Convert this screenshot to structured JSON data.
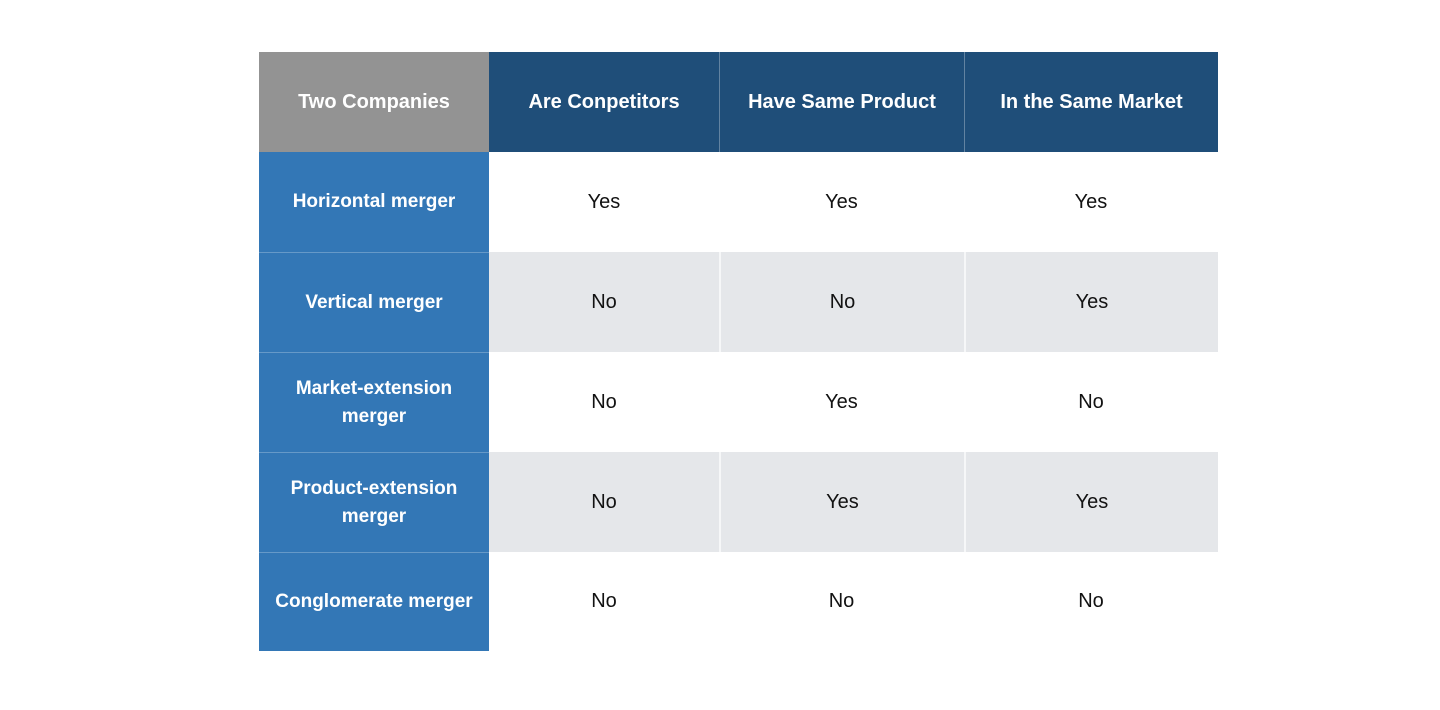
{
  "chart_data": {
    "type": "table",
    "corner_header": "Two Companies",
    "columns": [
      "Are Conpetitors",
      "Have Same Product",
      "In the Same Market"
    ],
    "rows": [
      {
        "label": "Horizontal merger",
        "values": [
          "Yes",
          "Yes",
          "Yes"
        ]
      },
      {
        "label": "Vertical merger",
        "values": [
          "No",
          "No",
          "Yes"
        ]
      },
      {
        "label": "Market-extension merger",
        "values": [
          "No",
          "Yes",
          "No"
        ]
      },
      {
        "label": "Product-extension merger",
        "values": [
          "No",
          "Yes",
          "Yes"
        ]
      },
      {
        "label": "Conglomerate merger",
        "values": [
          "No",
          "No",
          "No"
        ]
      }
    ],
    "layout_hints": {
      "alternating_rows": true,
      "alt_row_indices": [
        1,
        3
      ]
    },
    "colors": {
      "corner_bg": "#939393",
      "header_bg": "#1F4E79",
      "row_label_bg": "#3377B6",
      "alt_row_bg": "#E5E7EA",
      "row_bg": "#FFFFFF",
      "header_text": "#FFFFFF",
      "cell_text": "#121212"
    }
  }
}
